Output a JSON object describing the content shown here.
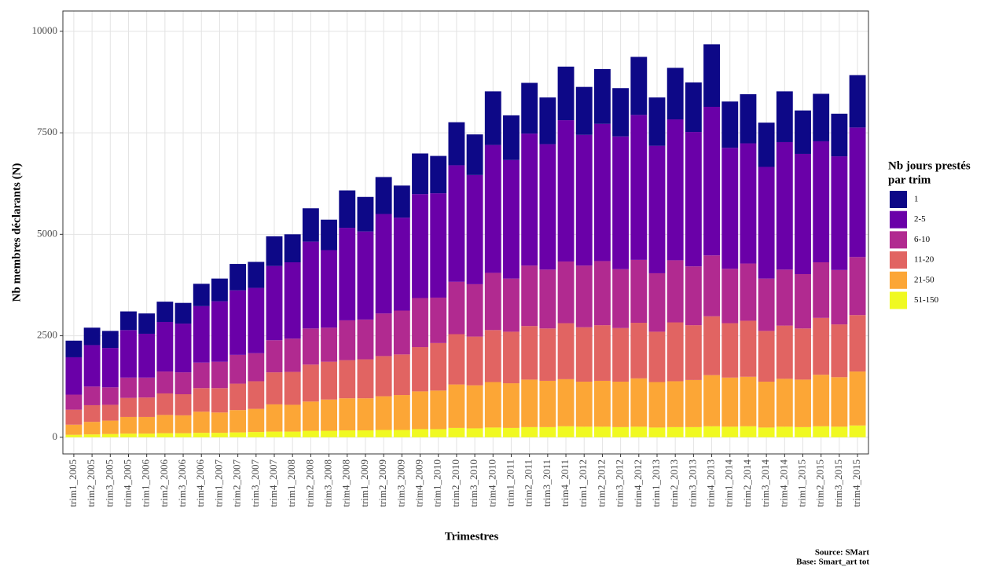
{
  "chart_data": {
    "type": "stacked-bar",
    "x_label": "Trimestres",
    "y_label": "Nb membres déclarants (N)",
    "legend_title": [
      "Nb jours prestés",
      "par trim"
    ],
    "caption": [
      "Source: SMart",
      "Base: Smart_art tot"
    ],
    "legend_position": "right",
    "grid": true,
    "ylim": [
      -410,
      10500
    ],
    "yticks": [
      0,
      2500,
      5000,
      7500,
      10000
    ],
    "categories": [
      "trim1_2005",
      "trim2_2005",
      "trim3_2005",
      "trim4_2005",
      "trim1_2006",
      "trim2_2006",
      "trim3_2006",
      "trim4_2006",
      "trim1_2007",
      "trim2_2007",
      "trim3_2007",
      "trim4_2007",
      "trim1_2008",
      "trim2_2008",
      "trim3_2008",
      "trim4_2008",
      "trim1_2009",
      "trim2_2009",
      "trim3_2009",
      "trim4_2009",
      "trim1_2010",
      "trim2_2010",
      "trim3_2010",
      "trim4_2010",
      "trim1_2011",
      "trim2_2011",
      "trim3_2011",
      "trim4_2011",
      "trim1_2012",
      "trim2_2012",
      "trim3_2012",
      "trim4_2012",
      "trim1_2013",
      "trim2_2013",
      "trim3_2013",
      "trim4_2013",
      "trim1_2014",
      "trim2_2014",
      "trim3_2014",
      "trim4_2014",
      "trim1_2015",
      "trim2_2015",
      "trim3_2015",
      "trim4_2015"
    ],
    "series": [
      {
        "name": "51-150",
        "color": "#f0f921",
        "values": [
          60,
          70,
          80,
          90,
          90,
          100,
          100,
          110,
          110,
          120,
          130,
          140,
          140,
          160,
          160,
          170,
          170,
          180,
          180,
          200,
          200,
          230,
          220,
          240,
          230,
          250,
          250,
          270,
          260,
          260,
          250,
          260,
          240,
          250,
          250,
          270,
          260,
          270,
          240,
          260,
          250,
          270,
          260,
          290
        ]
      },
      {
        "name": "21-50",
        "color": "#fca636",
        "values": [
          250,
          310,
          330,
          410,
          410,
          450,
          440,
          520,
          500,
          550,
          570,
          670,
          660,
          720,
          770,
          790,
          790,
          830,
          860,
          930,
          950,
          1070,
          1060,
          1120,
          1100,
          1170,
          1140,
          1160,
          1110,
          1130,
          1120,
          1190,
          1120,
          1130,
          1160,
          1260,
          1210,
          1220,
          1130,
          1180,
          1170,
          1270,
          1220,
          1330
        ]
      },
      {
        "name": "11-20",
        "color": "#e16462",
        "values": [
          370,
          410,
          390,
          470,
          480,
          530,
          520,
          580,
          600,
          650,
          680,
          790,
          810,
          910,
          930,
          940,
          960,
          990,
          1000,
          1090,
          1170,
          1240,
          1200,
          1280,
          1270,
          1320,
          1290,
          1380,
          1340,
          1370,
          1320,
          1370,
          1240,
          1450,
          1350,
          1450,
          1340,
          1380,
          1250,
          1310,
          1260,
          1400,
          1300,
          1390
        ]
      },
      {
        "name": "6-10",
        "color": "#b12a90",
        "values": [
          370,
          460,
          430,
          500,
          490,
          540,
          540,
          630,
          650,
          710,
          690,
          790,
          820,
          890,
          840,
          980,
          980,
          1050,
          1080,
          1210,
          1120,
          1290,
          1290,
          1410,
          1310,
          1490,
          1450,
          1520,
          1520,
          1580,
          1450,
          1550,
          1440,
          1530,
          1450,
          1500,
          1340,
          1410,
          1290,
          1380,
          1340,
          1370,
          1340,
          1430
        ]
      },
      {
        "name": "2-5",
        "color": "#6a00a8",
        "values": [
          920,
          1020,
          970,
          1170,
          1080,
          1220,
          1200,
          1390,
          1490,
          1590,
          1610,
          1830,
          1880,
          2140,
          1910,
          2280,
          2170,
          2450,
          2290,
          2560,
          2570,
          2870,
          2690,
          3150,
          2920,
          3250,
          3090,
          3480,
          3220,
          3380,
          3270,
          3570,
          3140,
          3470,
          3310,
          3660,
          2980,
          2960,
          2750,
          3140,
          2960,
          2980,
          2800,
          3190
        ]
      },
      {
        "name": "1",
        "color": "#0d0887",
        "values": [
          410,
          430,
          420,
          460,
          500,
          500,
          510,
          550,
          560,
          650,
          640,
          730,
          690,
          820,
          750,
          920,
          850,
          910,
          790,
          1000,
          920,
          1060,
          1000,
          1320,
          1100,
          1250,
          1150,
          1320,
          1180,
          1350,
          1190,
          1430,
          1190,
          1270,
          1220,
          1540,
          1140,
          1210,
          1090,
          1250,
          1070,
          1170,
          1050,
          1290
        ]
      }
    ]
  }
}
